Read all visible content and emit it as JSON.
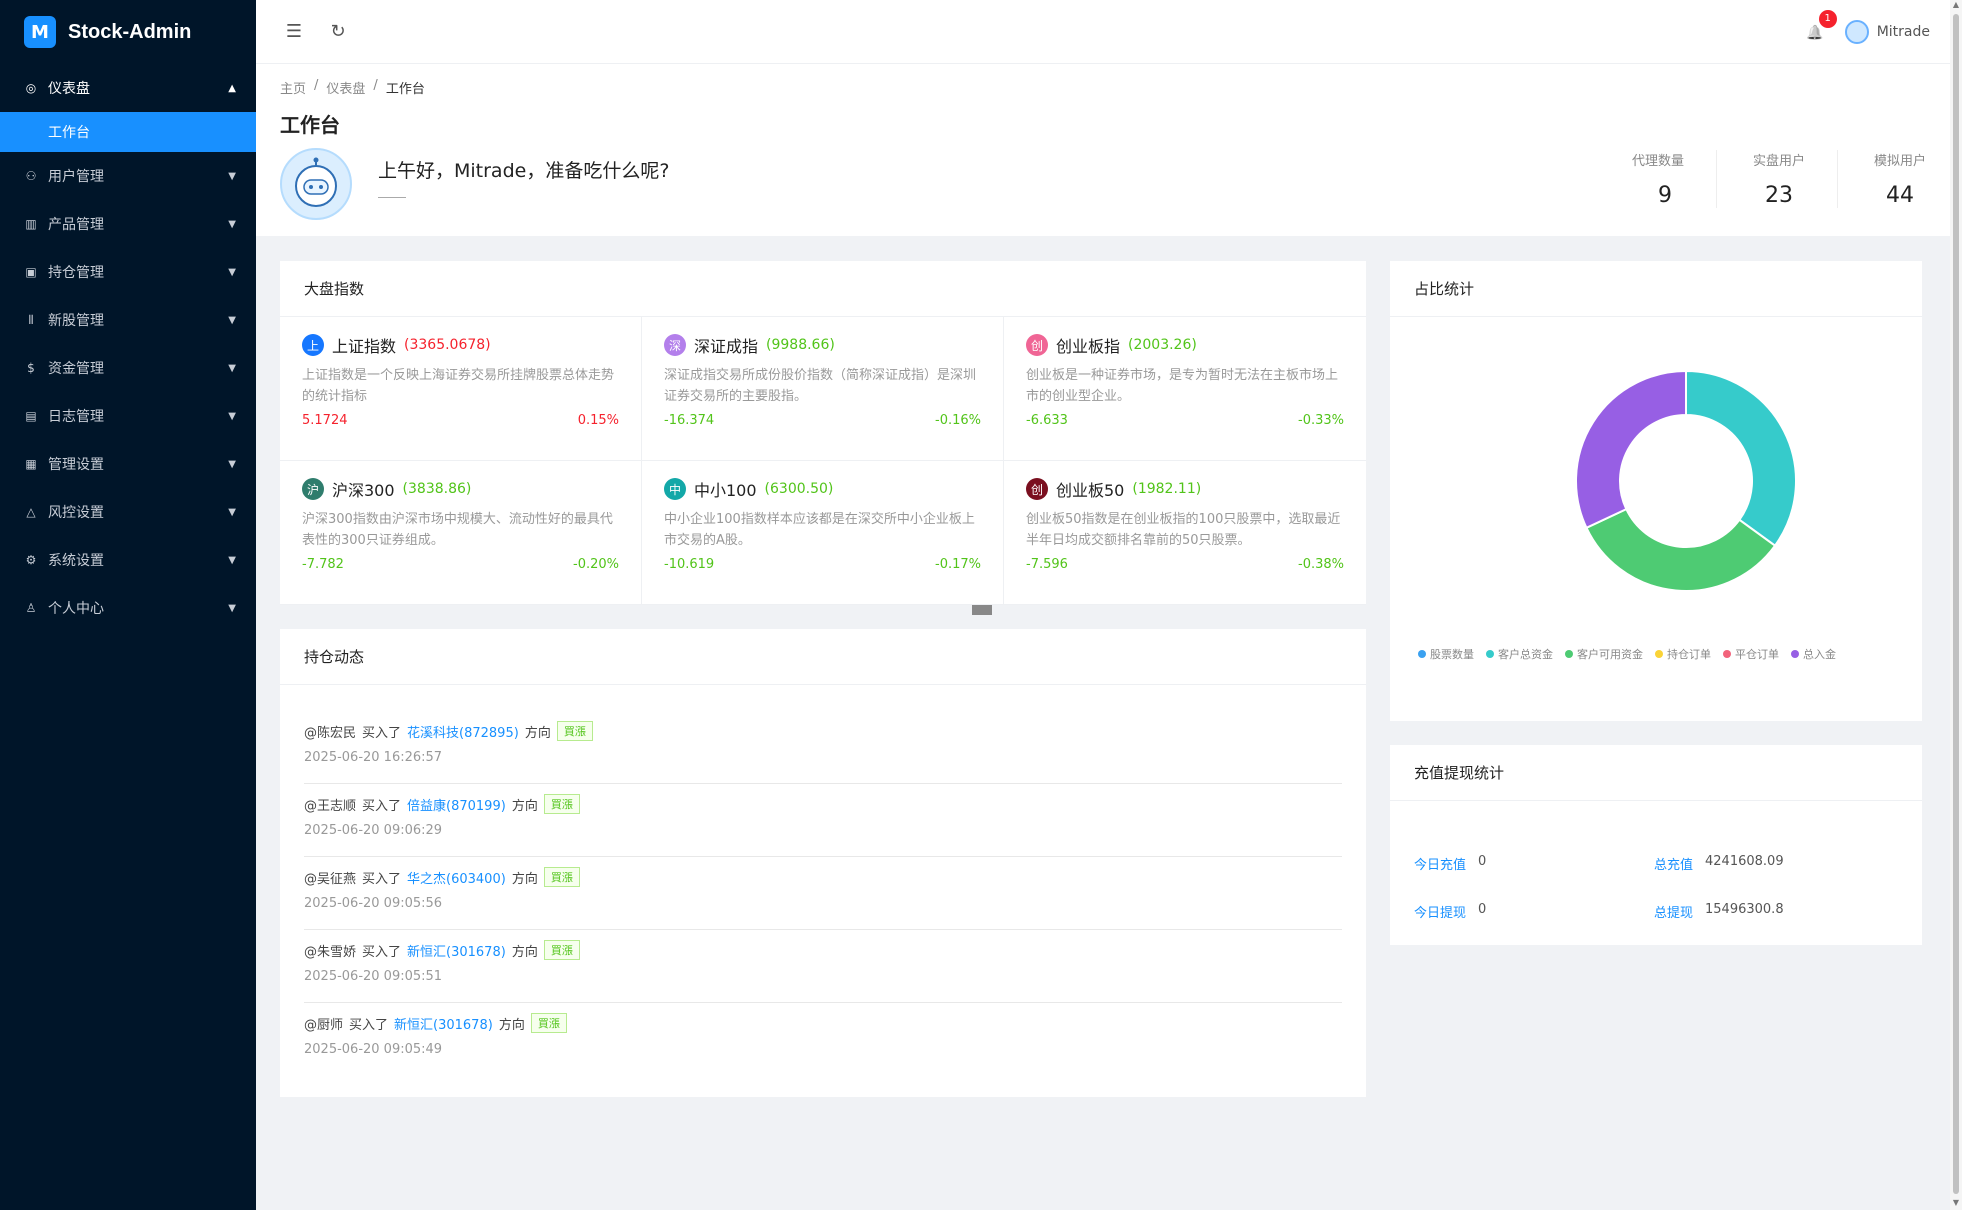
{
  "brand": {
    "title": "Stock-Admin",
    "logo": "M"
  },
  "sidebar": {
    "items": [
      {
        "label": "仪表盘",
        "icon": "dashboard-icon",
        "glyph": "◎",
        "arrow": "▲",
        "open": true
      },
      {
        "label": "用户管理",
        "icon": "users-icon",
        "glyph": "⚇",
        "arrow": "▼"
      },
      {
        "label": "产品管理",
        "icon": "chart-icon",
        "glyph": "▥",
        "arrow": "▼"
      },
      {
        "label": "持仓管理",
        "icon": "position-icon",
        "glyph": "▣",
        "arrow": "▼"
      },
      {
        "label": "新股管理",
        "icon": "ipo-icon",
        "glyph": "⦀",
        "arrow": "▼"
      },
      {
        "label": "资金管理",
        "icon": "funds-icon",
        "glyph": "$",
        "arrow": "▼"
      },
      {
        "label": "日志管理",
        "icon": "log-icon",
        "glyph": "▤",
        "arrow": "▼"
      },
      {
        "label": "管理设置",
        "icon": "admin-settings-icon",
        "glyph": "▦",
        "arrow": "▼"
      },
      {
        "label": "风控设置",
        "icon": "warning-icon",
        "glyph": "△",
        "arrow": "▼"
      },
      {
        "label": "系统设置",
        "icon": "gear-icon",
        "glyph": "⚙",
        "arrow": "▼"
      },
      {
        "label": "个人中心",
        "icon": "user-icon",
        "glyph": "♙",
        "arrow": "▼"
      }
    ],
    "active_sub": "工作台"
  },
  "header": {
    "menu_icon": "☰",
    "refresh_icon": "↻",
    "bell_icon": "🔔",
    "notification_count": "1",
    "username": "Mitrade"
  },
  "breadcrumb": {
    "home": "主页",
    "section": "仪表盘",
    "current": "工作台",
    "sep": "/"
  },
  "page": {
    "title": "工作台",
    "greeting": "上午好，Mitrade，准备吃什么呢?"
  },
  "stats": [
    {
      "label": "代理数量",
      "value": "9"
    },
    {
      "label": "实盘用户",
      "value": "23"
    },
    {
      "label": "模拟用户",
      "value": "44"
    }
  ],
  "indices": {
    "title": "大盘指数",
    "items": [
      {
        "badge": "上",
        "color": "#1677ff",
        "name": "上证指数",
        "value": "(3365.0678)",
        "value_color": "red",
        "desc": "上证指数是一个反映上海证券交易所挂牌股票总体走势的统计指标",
        "change": "5.1724",
        "percent": "0.15%",
        "trend": "red"
      },
      {
        "badge": "深",
        "color": "#b37feb",
        "name": "深证成指",
        "value": "(9988.66)",
        "value_color": "green",
        "desc": "深证成指交易所成份股价指数（简称深证成指）是深圳证券交易所的主要股指。",
        "change": "-16.374",
        "percent": "-0.16%",
        "trend": "green"
      },
      {
        "badge": "创",
        "color": "#f06595",
        "name": "创业板指",
        "value": "(2003.26)",
        "value_color": "green",
        "desc": "创业板是一种证券市场，是专为暂时无法在主板市场上市的创业型企业。",
        "change": "-6.633",
        "percent": "-0.33%",
        "trend": "green"
      },
      {
        "badge": "沪",
        "color": "#2f7d6d",
        "name": "沪深300",
        "value": "(3838.86)",
        "value_color": "green",
        "desc": "沪深300指数由沪深市场中规模大、流动性好的最具代表性的300只证券组成。",
        "change": "-7.782",
        "percent": "-0.20%",
        "trend": "green"
      },
      {
        "badge": "中",
        "color": "#13a8a8",
        "name": "中小100",
        "value": "(6300.50)",
        "value_color": "green",
        "desc": "中小企业100指数样本应该都是在深交所中小企业板上市交易的A股。",
        "change": "-10.619",
        "percent": "-0.17%",
        "trend": "green"
      },
      {
        "badge": "创",
        "color": "#7a0f1f",
        "name": "创业板50",
        "value": "(1982.11)",
        "value_color": "green",
        "desc": "创业板50指数是在创业板指的100只股票中，选取最近半年日均成交额排名靠前的50只股票。",
        "change": "-7.596",
        "percent": "-0.38%",
        "trend": "green"
      }
    ]
  },
  "feed": {
    "title": "持仓动态",
    "verb": "买入了",
    "direction_label": "方向",
    "items": [
      {
        "user": "@陈宏民",
        "stock": "花溪科技(872895)",
        "tag": "買漲",
        "time": "2025-06-20 16:26:57"
      },
      {
        "user": "@王志顺",
        "stock": "倍益康(870199)",
        "tag": "買漲",
        "time": "2025-06-20 09:06:29"
      },
      {
        "user": "@吴征燕",
        "stock": "华之杰(603400)",
        "tag": "買漲",
        "time": "2025-06-20 09:05:56"
      },
      {
        "user": "@朱雪娇",
        "stock": "新恒汇(301678)",
        "tag": "買漲",
        "time": "2025-06-20 09:05:51"
      },
      {
        "user": "@厨师",
        "stock": "新恒汇(301678)",
        "tag": "買漲",
        "time": "2025-06-20 09:05:49"
      }
    ]
  },
  "ratio": {
    "title": "占比统计"
  },
  "chart_data": {
    "type": "pie",
    "categories": [
      "股票数量",
      "客户总资金",
      "客户可用资金",
      "持仓订单",
      "平仓订单",
      "总入金"
    ],
    "colors": [
      "#3ba1f0",
      "#36cbcb",
      "#4ecb73",
      "#fad337",
      "#f2637b",
      "#975fe4"
    ],
    "values": [
      0,
      35,
      33,
      0,
      0,
      32
    ],
    "donut": true,
    "legend": "bottom"
  },
  "recharge": {
    "title": "充值提现统计",
    "today_recharge_label": "今日充值",
    "today_recharge": "0",
    "total_recharge_label": "总充值",
    "total_recharge": "4241608.09",
    "today_withdraw_label": "今日提现",
    "today_withdraw": "0",
    "total_withdraw_label": "总提现",
    "total_withdraw": "15496300.8"
  }
}
